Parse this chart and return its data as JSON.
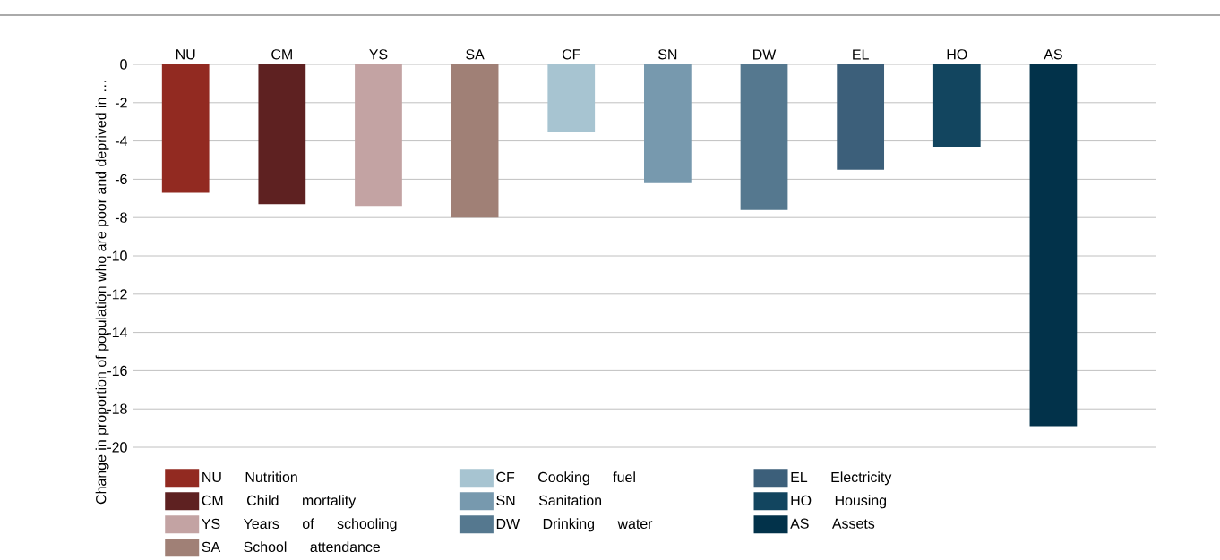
{
  "chart_data": {
    "type": "bar",
    "ylabel": "Change in proportion of population who are poor and deprived in …",
    "categories": [
      "NU",
      "CM",
      "YS",
      "SA",
      "CF",
      "SN",
      "DW",
      "EL",
      "HO",
      "AS"
    ],
    "series": [
      {
        "name": "NU Nutrition",
        "color": "#922a21",
        "values": [
          -6.7,
          null,
          null,
          null,
          null,
          null,
          null,
          null,
          null,
          null
        ]
      },
      {
        "name": "CM Child mortality",
        "color": "#5e2121",
        "values": [
          null,
          -7.3,
          null,
          null,
          null,
          null,
          null,
          null,
          null,
          null
        ]
      },
      {
        "name": "YS Years of schooling",
        "color": "#c3a3a3",
        "values": [
          null,
          null,
          -7.4,
          null,
          null,
          null,
          null,
          null,
          null,
          null
        ]
      },
      {
        "name": "SA School attendance",
        "color": "#a08076",
        "values": [
          null,
          null,
          null,
          -8.0,
          null,
          null,
          null,
          null,
          null,
          null
        ]
      },
      {
        "name": "CF Cooking fuel",
        "color": "#a7c4d1",
        "values": [
          null,
          null,
          null,
          null,
          -3.5,
          null,
          null,
          null,
          null,
          null
        ]
      },
      {
        "name": "SN Sanitation",
        "color": "#7799ae",
        "values": [
          null,
          null,
          null,
          null,
          null,
          -6.2,
          null,
          null,
          null,
          null
        ]
      },
      {
        "name": "DW Drinking water",
        "color": "#55788f",
        "values": [
          null,
          null,
          null,
          null,
          null,
          null,
          -7.6,
          null,
          null,
          null
        ]
      },
      {
        "name": "EL Electricity",
        "color": "#3c5f7a",
        "values": [
          null,
          null,
          null,
          null,
          null,
          null,
          null,
          -5.5,
          null,
          null
        ]
      },
      {
        "name": "HO Housing",
        "color": "#12455f",
        "values": [
          null,
          null,
          null,
          null,
          null,
          null,
          null,
          null,
          -4.3,
          null
        ]
      },
      {
        "name": "AS Assets",
        "color": "#02324a",
        "values": [
          null,
          null,
          null,
          null,
          null,
          null,
          null,
          null,
          null,
          -18.9
        ]
      }
    ],
    "ylim": [
      -20,
      0
    ],
    "yticks": [
      -20,
      -18,
      -16,
      -14,
      -12,
      -10,
      -8,
      -6,
      -4,
      -2,
      0
    ],
    "grid": "y",
    "legend": "bottom"
  }
}
